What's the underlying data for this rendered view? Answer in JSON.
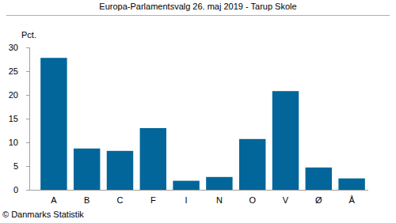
{
  "chart_data": {
    "type": "bar",
    "title": "Europa-Parlamentsvalg 26. maj 2019 - Tarup Skole",
    "y_label": "Pct.",
    "source": "© Danmarks Statistik",
    "categories": [
      "A",
      "B",
      "C",
      "F",
      "I",
      "N",
      "O",
      "V",
      "Ø",
      "Å"
    ],
    "values": [
      27.8,
      8.7,
      8.2,
      13.0,
      1.9,
      2.7,
      10.7,
      20.8,
      4.7,
      2.4
    ],
    "color": "#02669a",
    "ylim": [
      0,
      30
    ],
    "yticks": [
      0,
      5,
      10,
      15,
      20,
      25,
      30
    ],
    "grid": false
  }
}
